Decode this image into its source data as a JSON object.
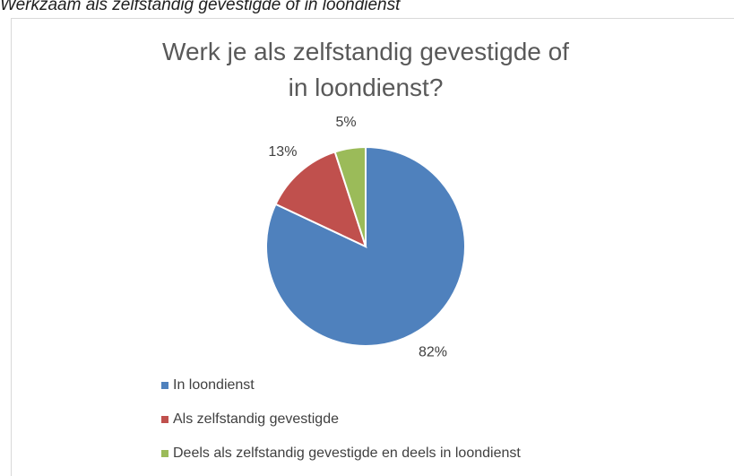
{
  "caption": "Werkzaam als zelfstandig gevestigde of in loondienst",
  "chart_data": {
    "type": "pie",
    "title": "Werk je als zelfstandig gevestigde of in loondienst?",
    "categories": [
      "In loondienst",
      "Als zelfstandig gevestigde",
      "Deels als zelfstandig gevestigde en deels in loondienst"
    ],
    "values": [
      82,
      13,
      5
    ],
    "value_labels": [
      "82%",
      "13%",
      "5%"
    ],
    "colors": [
      "#4f81bd",
      "#c0504d",
      "#9bbb59"
    ],
    "legend": "bottom-left"
  }
}
